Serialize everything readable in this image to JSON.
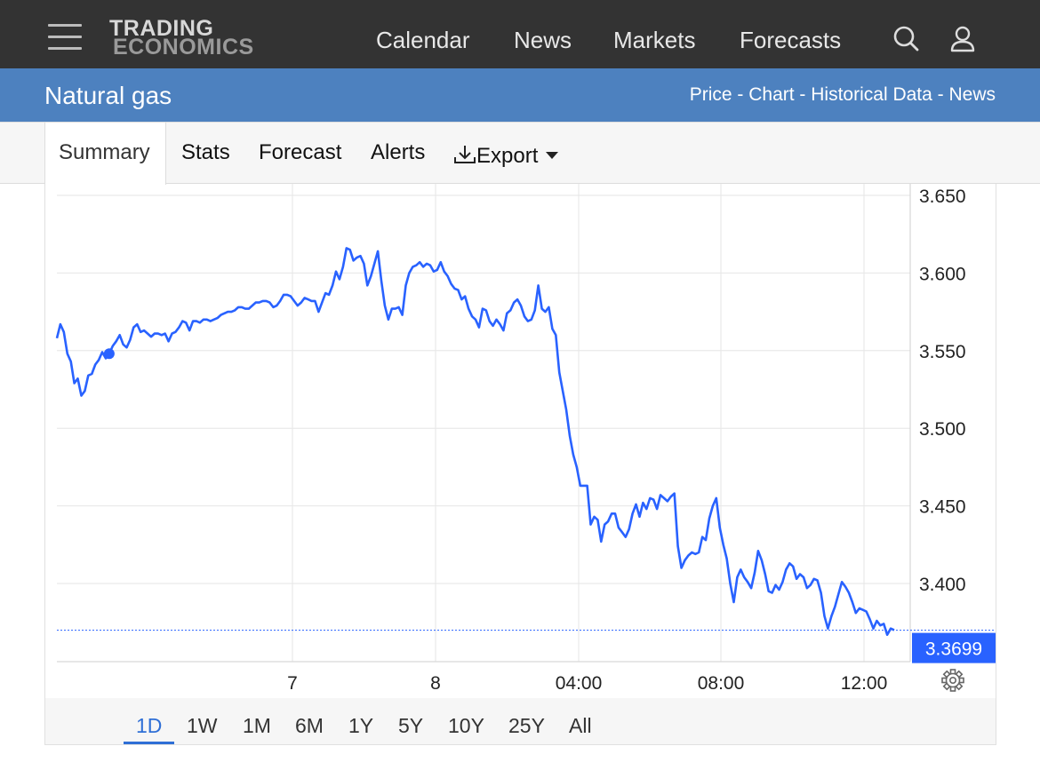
{
  "header": {
    "logo_line1": "TRADING",
    "logo_line2": "ECONOMICS",
    "nav": [
      "Calendar",
      "News",
      "Markets",
      "Forecasts"
    ],
    "icons": [
      "menu-icon",
      "search-icon",
      "user-icon"
    ]
  },
  "title_bar": {
    "title": "Natural gas",
    "links": [
      "Price",
      "Chart",
      "Historical Data",
      "News"
    ],
    "separator": " - "
  },
  "tabs": {
    "items": [
      "Summary",
      "Stats",
      "Forecast",
      "Alerts",
      "Export"
    ],
    "active": "Summary",
    "export_icon": "download-icon"
  },
  "range_selector": {
    "items": [
      "1D",
      "1W",
      "1M",
      "6M",
      "1Y",
      "5Y",
      "10Y",
      "25Y",
      "All"
    ],
    "active": "1D"
  },
  "colors": {
    "header_bg": "#333333",
    "title_bar_bg": "#4d81bf",
    "line": "#2962ff",
    "accent": "#2f6fd6"
  },
  "chart_data": {
    "type": "line",
    "y_ticks": [
      "3.650",
      "3.600",
      "3.550",
      "3.500",
      "3.450",
      "3.400"
    ],
    "x_ticks": [
      "7",
      "8",
      "04:00",
      "08:00",
      "12:00"
    ],
    "ylim": [
      3.35,
      3.655
    ],
    "last_value_label": "3.3699",
    "last_value": 3.3699,
    "grid": true,
    "series": [
      {
        "values": [
          3.558,
          3.567,
          3.562,
          3.548,
          3.543,
          3.529,
          3.532,
          3.521,
          3.524,
          3.534,
          3.535,
          3.541,
          3.544,
          3.549,
          3.545,
          3.548,
          3.553,
          3.556,
          3.56,
          3.554,
          3.552,
          3.557,
          3.565,
          3.567,
          3.562,
          3.563,
          3.561,
          3.559,
          3.561,
          3.561,
          3.56,
          3.561,
          3.556,
          3.561,
          3.562,
          3.565,
          3.569,
          3.568,
          3.563,
          3.569,
          3.569,
          3.568,
          3.57,
          3.57,
          3.569,
          3.57,
          3.571,
          3.573,
          3.574,
          3.575,
          3.575,
          3.576,
          3.578,
          3.578,
          3.577,
          3.577,
          3.579,
          3.581,
          3.581,
          3.582,
          3.582,
          3.581,
          3.578,
          3.579,
          3.582,
          3.586,
          3.586,
          3.585,
          3.582,
          3.579,
          3.581,
          3.584,
          3.583,
          3.582,
          3.582,
          3.575,
          3.581,
          3.587,
          3.586,
          3.592,
          3.601,
          3.596,
          3.604,
          3.616,
          3.615,
          3.608,
          3.61,
          3.611,
          3.606,
          3.592,
          3.598,
          3.606,
          3.614,
          3.595,
          3.579,
          3.57,
          3.577,
          3.577,
          3.578,
          3.573,
          3.592,
          3.6,
          3.604,
          3.605,
          3.607,
          3.604,
          3.606,
          3.605,
          3.601,
          3.602,
          3.607,
          3.601,
          3.598,
          3.593,
          3.59,
          3.589,
          3.583,
          3.585,
          3.577,
          3.572,
          3.57,
          3.565,
          3.577,
          3.576,
          3.569,
          3.566,
          3.57,
          3.567,
          3.563,
          3.574,
          3.576,
          3.581,
          3.583,
          3.579,
          3.572,
          3.569,
          3.57,
          3.576,
          3.592,
          3.577,
          3.575,
          3.578,
          3.564,
          3.56,
          3.536,
          3.524,
          3.512,
          3.495,
          3.483,
          3.475,
          3.463,
          3.463,
          3.463,
          3.438,
          3.443,
          3.441,
          3.427,
          3.438,
          3.44,
          3.445,
          3.445,
          3.436,
          3.433,
          3.43,
          3.435,
          3.445,
          3.451,
          3.443,
          3.452,
          3.448,
          3.455,
          3.454,
          3.448,
          3.457,
          3.455,
          3.453,
          3.456,
          3.458,
          3.424,
          3.41,
          3.415,
          3.418,
          3.42,
          3.419,
          3.42,
          3.43,
          3.428,
          3.442,
          3.45,
          3.455,
          3.436,
          3.425,
          3.416,
          3.4,
          3.388,
          3.404,
          3.409,
          3.404,
          3.401,
          3.397,
          3.407,
          3.421,
          3.415,
          3.406,
          3.395,
          3.394,
          3.399,
          3.396,
          3.401,
          3.409,
          3.413,
          3.411,
          3.403,
          3.406,
          3.404,
          3.397,
          3.399,
          3.403,
          3.402,
          3.394,
          3.379,
          3.371,
          3.379,
          3.385,
          3.393,
          3.401,
          3.398,
          3.394,
          3.388,
          3.381,
          3.384,
          3.383,
          3.382,
          3.377,
          3.371,
          3.376,
          3.373,
          3.374,
          3.367,
          3.371,
          3.37
        ]
      }
    ]
  }
}
